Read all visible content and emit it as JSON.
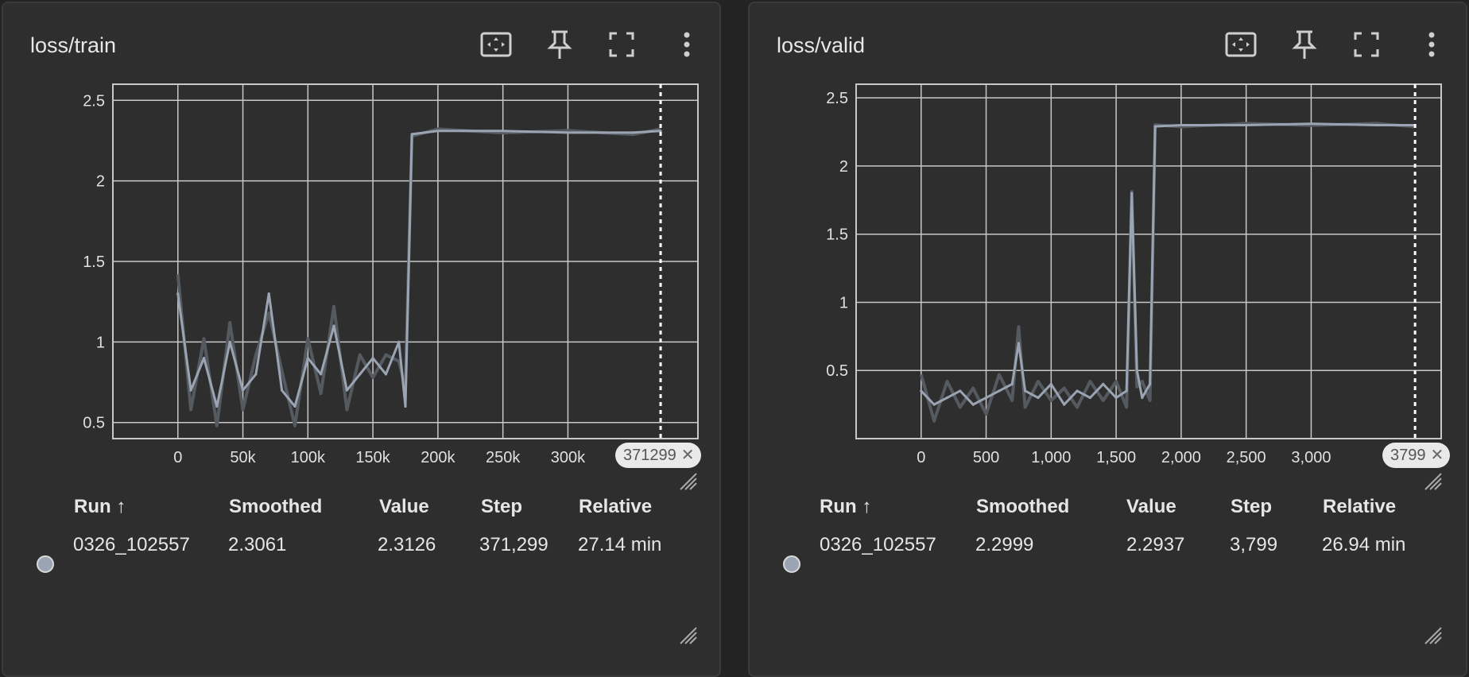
{
  "cards": [
    {
      "title": "loss/train",
      "table": {
        "headers": [
          "Run ↑",
          "Smoothed",
          "Value",
          "Step",
          "Relative"
        ],
        "row": [
          "0326_102557",
          "2.3061",
          "2.3126",
          "371,299",
          "27.14 min"
        ]
      },
      "cursor_label": "371299",
      "icons": [
        "fit-domain-icon",
        "pin-icon",
        "fullscreen-icon",
        "more-vert-icon"
      ]
    },
    {
      "title": "loss/valid",
      "table": {
        "headers": [
          "Run ↑",
          "Smoothed",
          "Value",
          "Step",
          "Relative"
        ],
        "row": [
          "0326_102557",
          "2.2999",
          "2.2937",
          "3,799",
          "26.94 min"
        ]
      },
      "cursor_label": "3799",
      "icons": [
        "fit-domain-icon",
        "pin-icon",
        "fullscreen-icon",
        "more-vert-icon"
      ]
    }
  ],
  "colors": {
    "smoothed_line": "#9aa4b3",
    "raw_line": "#555a60",
    "grid": "#c8c8c8",
    "card_bg": "#2e2e2e"
  },
  "chart_data": [
    {
      "type": "line",
      "title": "loss/train",
      "xlabel": "",
      "ylabel": "",
      "x_ticks": [
        "0",
        "50k",
        "100k",
        "150k",
        "200k",
        "250k",
        "300k"
      ],
      "x_tick_values": [
        0,
        50000,
        100000,
        150000,
        200000,
        250000,
        300000
      ],
      "y_ticks": [
        "0.5",
        "1",
        "1.5",
        "2",
        "2.5"
      ],
      "y_tick_values": [
        0.5,
        1,
        1.5,
        2,
        2.5
      ],
      "xlim": [
        -50000,
        400000
      ],
      "ylim": [
        0.4,
        2.6
      ],
      "grid": true,
      "cursor_step": 371299,
      "series": [
        {
          "x": [
            0,
            10000,
            20000,
            30000,
            40000,
            50000,
            60000,
            70000,
            80000,
            90000,
            100000,
            110000,
            120000,
            130000,
            140000,
            150000,
            160000,
            170000,
            175000,
            180000,
            200000,
            250000,
            300000,
            350000,
            371299
          ],
          "values": [
            1.3,
            0.7,
            0.9,
            0.6,
            1.0,
            0.7,
            0.8,
            1.3,
            0.7,
            0.6,
            0.9,
            0.8,
            1.1,
            0.7,
            0.8,
            0.9,
            0.8,
            1.0,
            0.6,
            2.29,
            2.31,
            2.31,
            2.3,
            2.3,
            2.31
          ]
        }
      ]
    },
    {
      "type": "line",
      "title": "loss/valid",
      "xlabel": "",
      "ylabel": "",
      "x_ticks": [
        "0",
        "500",
        "1,000",
        "1,500",
        "2,000",
        "2,500",
        "3,000"
      ],
      "x_tick_values": [
        0,
        500,
        1000,
        1500,
        2000,
        2500,
        3000
      ],
      "y_ticks": [
        "0.5",
        "1",
        "1.5",
        "2",
        "2.5"
      ],
      "y_tick_values": [
        0.5,
        1,
        1.5,
        2,
        2.5
      ],
      "xlim": [
        -500,
        4000
      ],
      "ylim": [
        0,
        2.6
      ],
      "grid": true,
      "cursor_step": 3799,
      "series": [
        {
          "x": [
            0,
            100,
            200,
            300,
            400,
            500,
            600,
            700,
            750,
            800,
            900,
            1000,
            1100,
            1200,
            1300,
            1400,
            1500,
            1580,
            1620,
            1660,
            1700,
            1760,
            1800,
            2000,
            2500,
            3000,
            3500,
            3799
          ],
          "values": [
            0.35,
            0.25,
            0.3,
            0.35,
            0.25,
            0.3,
            0.35,
            0.4,
            0.7,
            0.35,
            0.3,
            0.4,
            0.25,
            0.35,
            0.3,
            0.4,
            0.3,
            0.35,
            1.8,
            0.5,
            0.3,
            0.4,
            2.29,
            2.3,
            2.3,
            2.31,
            2.3,
            2.3
          ]
        }
      ]
    }
  ]
}
